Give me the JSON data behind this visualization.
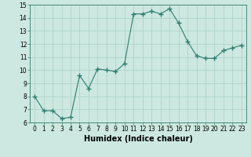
{
  "x": [
    0,
    1,
    2,
    3,
    4,
    5,
    6,
    7,
    8,
    9,
    10,
    11,
    12,
    13,
    14,
    15,
    16,
    17,
    18,
    19,
    20,
    21,
    22,
    23
  ],
  "y": [
    8.0,
    6.9,
    6.9,
    6.3,
    6.4,
    9.6,
    8.6,
    10.1,
    10.0,
    9.9,
    10.5,
    14.3,
    14.3,
    14.5,
    14.3,
    14.7,
    13.6,
    12.2,
    11.1,
    10.9,
    10.9,
    11.5,
    11.7,
    11.9
  ],
  "line_color": "#2e7d6e",
  "marker": "+",
  "marker_size": 4,
  "bg_color": "#cce8e0",
  "grid_color": "#aacfc7",
  "xlabel": "Humidex (Indice chaleur)",
  "xlim": [
    -0.5,
    23.5
  ],
  "ylim": [
    6,
    15
  ],
  "yticks": [
    6,
    7,
    8,
    9,
    10,
    11,
    12,
    13,
    14,
    15
  ],
  "xticks": [
    0,
    1,
    2,
    3,
    4,
    5,
    6,
    7,
    8,
    9,
    10,
    11,
    12,
    13,
    14,
    15,
    16,
    17,
    18,
    19,
    20,
    21,
    22,
    23
  ],
  "tick_fontsize": 5.5,
  "xlabel_fontsize": 7
}
